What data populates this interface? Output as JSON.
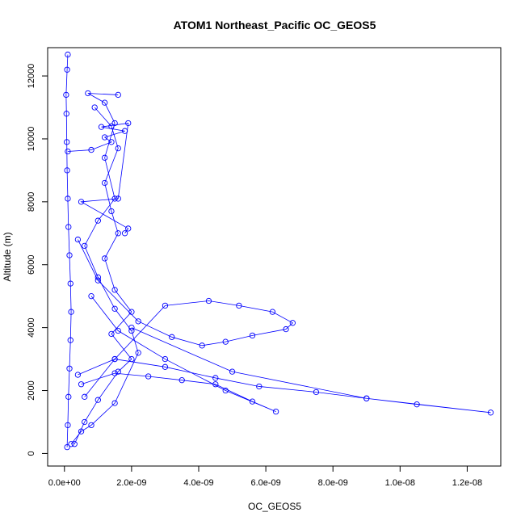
{
  "chart_data": {
    "type": "scatter",
    "title": "ATOM1 Northeast_Pacific OC_GEOS5",
    "xlabel": "OC_GEOS5",
    "ylabel": "Altitude (m)",
    "xlim": [
      -5e-10,
      1.3e-08
    ],
    "ylim": [
      -400,
      12900
    ],
    "x_ticks": [
      0,
      2e-09,
      4e-09,
      6e-09,
      8e-09,
      1e-08,
      1.2e-08
    ],
    "x_tick_labels": [
      "0.0e+00",
      "2.0e-09",
      "4.0e-09",
      "6.0e-09",
      "8.0e-09",
      "1.0e-08",
      "1.2e-08"
    ],
    "y_ticks": [
      0,
      2000,
      4000,
      6000,
      8000,
      10000,
      12000
    ],
    "y_tick_labels": [
      "0",
      "2000",
      "4000",
      "6000",
      "8000",
      "10000",
      "12000"
    ],
    "grid": false,
    "marker": "open-circle",
    "color": "#0000ff",
    "series": [
      {
        "points": [
          [
            8e-11,
            200
          ],
          [
            1e-10,
            900
          ],
          [
            1.2e-10,
            1800
          ],
          [
            1.5e-10,
            2700
          ],
          [
            1.8e-10,
            3600
          ],
          [
            2e-10,
            4500
          ],
          [
            1.8e-10,
            5400
          ],
          [
            1.5e-10,
            6300
          ],
          [
            1.2e-10,
            7200
          ],
          [
            1e-10,
            8100
          ],
          [
            8e-11,
            9000
          ],
          [
            7e-11,
            9900
          ],
          [
            6e-11,
            10800
          ],
          [
            5e-11,
            11400
          ],
          [
            8e-11,
            12200
          ],
          [
            1e-10,
            12680
          ]
        ]
      },
      {
        "points": [
          [
            2e-10,
            300
          ],
          [
            5e-10,
            700
          ],
          [
            8e-10,
            900
          ],
          [
            1.5e-09,
            1600
          ],
          [
            2.2e-09,
            3200
          ],
          [
            2e-09,
            3900
          ],
          [
            1.5e-09,
            4600
          ],
          [
            1e-09,
            5600
          ],
          [
            6e-10,
            6600
          ],
          [
            1e-09,
            7400
          ],
          [
            1.5e-09,
            8100
          ],
          [
            1.2e-09,
            9400
          ],
          [
            1.5e-09,
            10500
          ],
          [
            1.2e-09,
            11150
          ],
          [
            7e-10,
            11450
          ],
          [
            1.6e-09,
            11400
          ]
        ]
      },
      {
        "points": [
          [
            3e-10,
            300
          ],
          [
            6e-10,
            1000
          ],
          [
            1e-09,
            1700
          ],
          [
            1.6e-09,
            2600
          ],
          [
            2e-09,
            3000
          ],
          [
            1.4e-09,
            3800
          ],
          [
            2e-09,
            4500
          ],
          [
            1.5e-09,
            5200
          ],
          [
            1.2e-09,
            6200
          ],
          [
            1.6e-09,
            7000
          ],
          [
            1.4e-09,
            7700
          ],
          [
            1.2e-09,
            8600
          ],
          [
            1.6e-09,
            9700
          ],
          [
            1.4e-09,
            10400
          ],
          [
            9e-10,
            11000
          ]
        ]
      },
      {
        "points": [
          [
            6e-10,
            1800
          ],
          [
            1.5e-09,
            3000
          ],
          [
            3e-09,
            4700
          ],
          [
            4.3e-09,
            4850
          ],
          [
            5.2e-09,
            4700
          ],
          [
            6.2e-09,
            4500
          ],
          [
            6.8e-09,
            4150
          ],
          [
            6.6e-09,
            3950
          ],
          [
            5.6e-09,
            3750
          ],
          [
            4.8e-09,
            3550
          ],
          [
            4.1e-09,
            3430
          ],
          [
            3.2e-09,
            3700
          ],
          [
            2.2e-09,
            4200
          ],
          [
            1e-09,
            5500
          ],
          [
            4e-10,
            6800
          ]
        ]
      },
      {
        "points": [
          [
            5e-10,
            2200
          ],
          [
            1.5e-09,
            2550
          ],
          [
            2.5e-09,
            2450
          ],
          [
            3.5e-09,
            2330
          ],
          [
            4.5e-09,
            2200
          ],
          [
            5.6e-09,
            1650
          ],
          [
            6.3e-09,
            1330
          ],
          [
            4.8e-09,
            2000
          ],
          [
            3e-09,
            3000
          ],
          [
            1.6e-09,
            3900
          ],
          [
            8e-10,
            5000
          ]
        ]
      },
      {
        "points": [
          [
            4e-10,
            2500
          ],
          [
            1.5e-09,
            3000
          ],
          [
            3e-09,
            2750
          ],
          [
            4.5e-09,
            2400
          ],
          [
            5.8e-09,
            2130
          ],
          [
            7.5e-09,
            1950
          ],
          [
            9e-09,
            1750
          ],
          [
            1.05e-08,
            1560
          ],
          [
            1.27e-08,
            1300
          ],
          [
            9e-09,
            1750
          ],
          [
            5e-09,
            2600
          ],
          [
            2e-09,
            4000
          ]
        ]
      },
      {
        "points": [
          [
            1e-10,
            9600
          ],
          [
            8e-10,
            9650
          ],
          [
            1.4e-09,
            9900
          ],
          [
            1.2e-09,
            10050
          ],
          [
            1.8e-09,
            10250
          ],
          [
            1.1e-09,
            10380
          ],
          [
            1.9e-09,
            10500
          ],
          [
            1.6e-09,
            8100
          ],
          [
            5e-10,
            8000
          ],
          [
            1.9e-09,
            7150
          ],
          [
            1.8e-09,
            7000
          ]
        ]
      }
    ]
  }
}
